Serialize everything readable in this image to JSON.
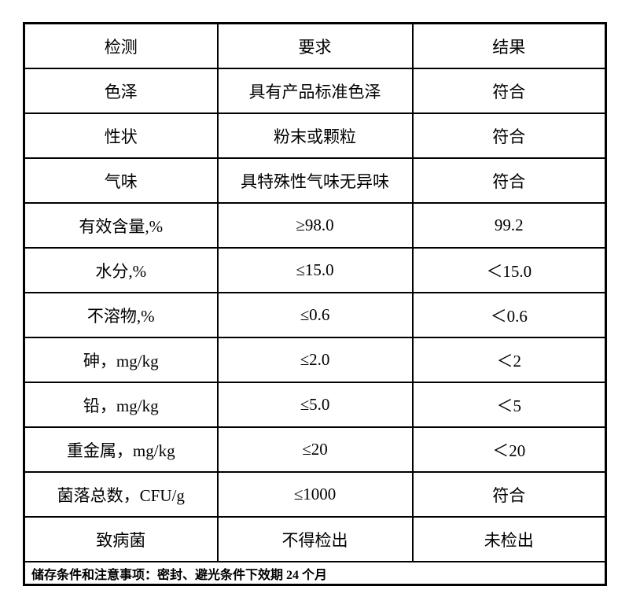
{
  "page": {
    "background": "#ffffff",
    "line_color": "#000000",
    "text_color": "#000000"
  },
  "table": {
    "headers": [
      "检测",
      "要求",
      "结果"
    ],
    "rows": [
      {
        "test": "色泽",
        "requirement": "具有产品标准色泽",
        "result": "符合"
      },
      {
        "test": "性状",
        "requirement": "粉末或颗粒",
        "result": "符合"
      },
      {
        "test": "气味",
        "requirement": "具特殊性气味无异味",
        "result": "符合"
      },
      {
        "test": "有效含量,%",
        "requirement": "≥98.0",
        "result": "99.2"
      },
      {
        "test": "水分,%",
        "requirement": "≤15.0",
        "result": "＜15.0"
      },
      {
        "test": "不溶物,%",
        "requirement": "≤0.6",
        "result": "＜0.6"
      },
      {
        "test": "砷，mg/kg",
        "requirement": "≤2.0",
        "result": "＜2"
      },
      {
        "test": "铅，mg/kg",
        "requirement": "≤5.0",
        "result": "＜5"
      },
      {
        "test": "重金属，mg/kg",
        "requirement": "≤20",
        "result": "＜20"
      },
      {
        "test": "菌落总数，CFU/g",
        "requirement": "≤1000",
        "result": "符合"
      },
      {
        "test": "致病菌",
        "requirement": "不得检出",
        "result": "未检出"
      }
    ],
    "footer_note": "储存条件和注意事项：密封、避光条件下效期 24 个月"
  }
}
